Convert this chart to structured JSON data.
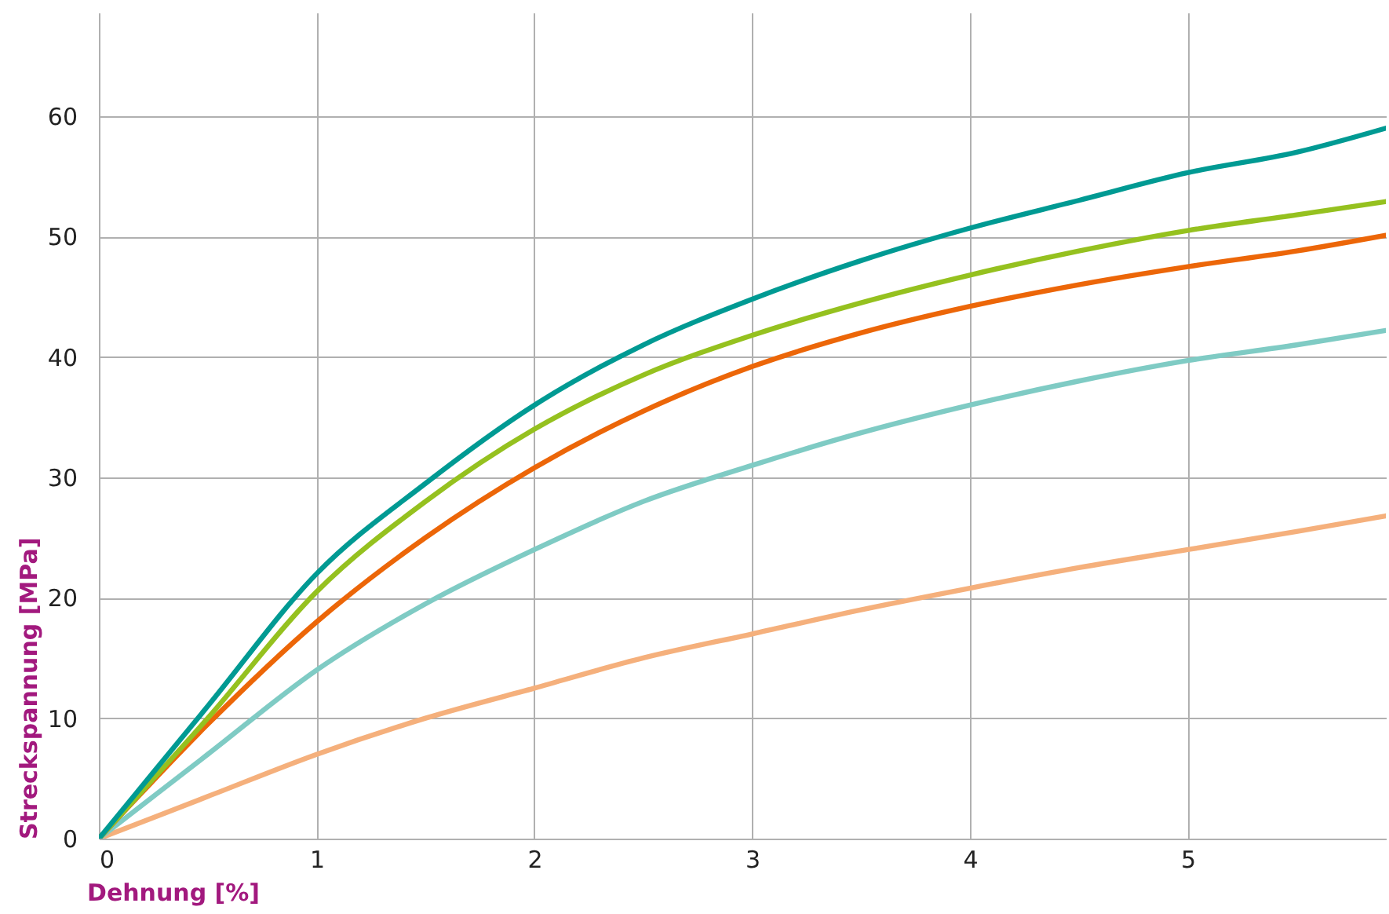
{
  "chart_data": {
    "type": "line",
    "xlabel": "Dehnung [%]",
    "ylabel": "Streckspannung [MPa]",
    "xlim": [
      0,
      5.91
    ],
    "ylim": [
      0,
      68.6
    ],
    "xticks": [
      0,
      1,
      2,
      3,
      4,
      5
    ],
    "yticks": [
      0,
      10,
      20,
      30,
      40,
      50,
      60
    ],
    "grid": true,
    "marker": "none",
    "line_style": "solid",
    "x": [
      0,
      0.5,
      1,
      1.5,
      2,
      2.5,
      3,
      3.5,
      4,
      4.5,
      5,
      5.5,
      5.91
    ],
    "series": [
      {
        "color": "#f5b07c",
        "values": [
          0,
          3.5,
          7,
          10,
          12.5,
          15,
          17,
          19,
          20.8,
          22.5,
          24,
          25.5,
          26.8
        ]
      },
      {
        "color": "#7fcbc4",
        "values": [
          0,
          7,
          14,
          19.5,
          24,
          28,
          31,
          33.7,
          36,
          38,
          39.7,
          41,
          42.2
        ]
      },
      {
        "color": "#ec6608",
        "values": [
          0,
          9.5,
          18,
          25,
          30.8,
          35.5,
          39.2,
          42,
          44.2,
          46,
          47.5,
          48.8,
          50.1
        ]
      },
      {
        "color": "#95c11f",
        "values": [
          0,
          10,
          20.5,
          28,
          34,
          38.5,
          41.8,
          44.5,
          46.8,
          48.8,
          50.5,
          51.8,
          52.9
        ]
      },
      {
        "color": "#009a93",
        "values": [
          0,
          11,
          22,
          29.5,
          36,
          41,
          44.8,
          48,
          50.7,
          53,
          55.3,
          57,
          59
        ]
      }
    ]
  }
}
